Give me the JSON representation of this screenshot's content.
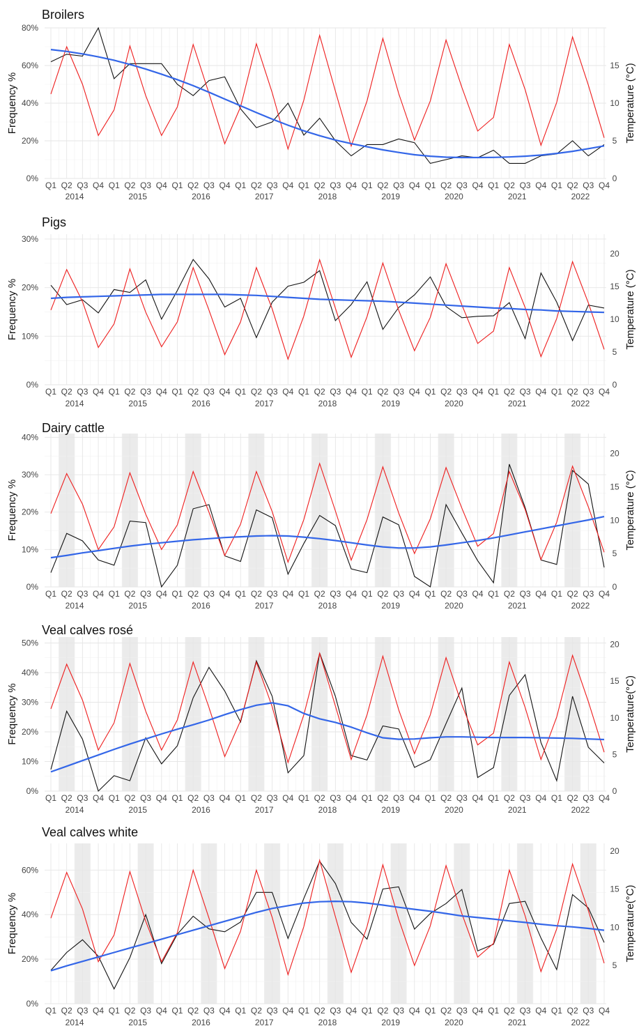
{
  "chart_data": [
    {
      "type": "line",
      "title": "Broilers",
      "ylabel": "Frequency %",
      "y2label": "Temperature (°C)",
      "ylim": [
        0,
        80
      ],
      "yticks": [
        0,
        20,
        40,
        60,
        80
      ],
      "ytick_labels": [
        "0%",
        "20%",
        "40%",
        "60%",
        "80%"
      ],
      "y2lim": [
        0,
        20
      ],
      "y2ticks": [
        0,
        5,
        10,
        15
      ],
      "shaded_quarter": null,
      "series": [
        {
          "name": "Frequency %",
          "color": "#111111",
          "values": [
            62,
            66,
            65,
            80,
            53,
            61,
            61,
            61,
            50,
            44,
            52,
            54,
            37,
            27,
            30,
            40,
            23,
            32,
            20,
            12,
            18,
            18,
            21,
            19,
            8,
            10,
            12,
            11,
            15,
            8,
            8,
            12,
            13,
            20,
            12,
            18
          ]
        },
        {
          "name": "Temperature (°C)",
          "color": "#ee1c1c",
          "values": [
            11.2,
            17.5,
            12.5,
            5.7,
            9.1,
            17.6,
            11.0,
            5.7,
            9.5,
            17.8,
            11.3,
            4.6,
            9.5,
            17.9,
            11.4,
            3.9,
            10.4,
            19.0,
            11.6,
            4.3,
            10.3,
            18.6,
            11.3,
            5.1,
            10.3,
            18.4,
            12.1,
            6.3,
            8.1,
            17.8,
            11.8,
            4.4,
            10.1,
            18.8,
            12.4,
            5.4
          ]
        },
        {
          "name": "Trend",
          "color": "#3366e8",
          "values": [
            68.5,
            67.5,
            66.2,
            64.6,
            62.8,
            60.6,
            58.1,
            55.4,
            52.5,
            49.3,
            45.8,
            42.2,
            38.6,
            35.0,
            31.5,
            28.3,
            25.3,
            22.7,
            20.4,
            18.5,
            16.8,
            15.2,
            13.8,
            12.6,
            11.8,
            11.3,
            11.1,
            11.1,
            11.2,
            11.4,
            11.8,
            12.4,
            13.3,
            14.4,
            15.8,
            17.3
          ]
        }
      ]
    },
    {
      "type": "line",
      "title": "Pigs",
      "ylabel": "Frequency %",
      "y2label": "Temperature (°C)",
      "ylim": [
        0,
        31
      ],
      "yticks": [
        0,
        10,
        20,
        30
      ],
      "ytick_labels": [
        "0%",
        "10%",
        "20%",
        "30%"
      ],
      "y2lim": [
        0,
        23
      ],
      "y2ticks": [
        0,
        5,
        10,
        15,
        20
      ],
      "shaded_quarter": null,
      "series": [
        {
          "name": "Frequency %",
          "color": "#111111",
          "values": [
            20.5,
            16.5,
            17.5,
            14.8,
            19.6,
            19.0,
            21.6,
            13.5,
            19.4,
            25.8,
            21.8,
            16.0,
            17.8,
            9.7,
            17.0,
            20.3,
            21.1,
            23.5,
            13.2,
            16.5,
            21.2,
            11.4,
            15.9,
            18.5,
            22.2,
            16.1,
            13.8,
            14.1,
            14.2,
            16.9,
            9.5,
            23.0,
            17.0,
            9.1,
            16.4,
            15.8
          ]
        },
        {
          "name": "Temperature (°C)",
          "color": "#ee1c1c",
          "values": [
            11.4,
            17.6,
            12.7,
            5.7,
            9.3,
            17.7,
            11.1,
            5.8,
            9.6,
            17.9,
            11.4,
            4.6,
            9.6,
            17.9,
            11.6,
            3.9,
            10.5,
            19.1,
            11.7,
            4.2,
            10.4,
            18.6,
            11.4,
            5.2,
            10.3,
            18.5,
            12.2,
            6.3,
            8.2,
            17.9,
            11.8,
            4.3,
            10.1,
            18.8,
            12.5,
            5.4
          ]
        },
        {
          "name": "Trend",
          "color": "#3366e8",
          "values": [
            17.8,
            18.0,
            18.1,
            18.2,
            18.3,
            18.4,
            18.5,
            18.6,
            18.6,
            18.6,
            18.6,
            18.6,
            18.5,
            18.4,
            18.2,
            18.0,
            17.8,
            17.6,
            17.5,
            17.4,
            17.3,
            17.2,
            17.0,
            16.8,
            16.6,
            16.4,
            16.2,
            16.0,
            15.8,
            15.7,
            15.5,
            15.4,
            15.2,
            15.1,
            15.0,
            14.9
          ]
        }
      ]
    },
    {
      "type": "line",
      "title": "Dairy cattle",
      "ylabel": "Frequency %",
      "y2label": "Temperature (°C)",
      "ylim": [
        0,
        41
      ],
      "yticks": [
        0,
        10,
        20,
        30,
        40
      ],
      "ytick_labels": [
        "0%",
        "10%",
        "20%",
        "30%",
        "40%"
      ],
      "y2lim": [
        0,
        23
      ],
      "y2ticks": [
        0,
        5,
        10,
        15,
        20
      ],
      "shaded_quarter": 2,
      "series": [
        {
          "name": "Frequency %",
          "color": "#111111",
          "values": [
            3.8,
            14.3,
            12.3,
            7.2,
            5.8,
            17.6,
            17.2,
            0.0,
            5.8,
            20.9,
            22.0,
            8.3,
            6.8,
            20.6,
            18.5,
            3.4,
            11.6,
            19.1,
            16.4,
            4.8,
            3.8,
            18.7,
            16.6,
            2.8,
            0.0,
            22.0,
            14.4,
            7.0,
            1.1,
            32.8,
            21.2,
            7.2,
            6.0,
            31.1,
            27.5,
            5.2
          ]
        },
        {
          "name": "Temperature (°C)",
          "color": "#ee1c1c",
          "values": [
            11.0,
            17.0,
            12.4,
            5.6,
            9.0,
            17.1,
            10.9,
            5.6,
            9.3,
            17.3,
            11.2,
            4.7,
            9.4,
            17.3,
            11.3,
            3.7,
            10.1,
            18.5,
            11.4,
            4.0,
            10.1,
            18.0,
            11.1,
            5.0,
            10.2,
            17.9,
            11.8,
            6.1,
            8.0,
            17.3,
            11.6,
            4.1,
            9.7,
            18.1,
            12.0,
            5.2
          ]
        },
        {
          "name": "Trend",
          "color": "#3366e8",
          "values": [
            7.8,
            8.4,
            9.1,
            9.7,
            10.3,
            10.9,
            11.4,
            11.8,
            12.2,
            12.6,
            12.9,
            13.2,
            13.4,
            13.6,
            13.7,
            13.6,
            13.3,
            12.9,
            12.4,
            11.8,
            11.2,
            10.7,
            10.4,
            10.4,
            10.7,
            11.2,
            11.8,
            12.4,
            13.1,
            13.9,
            14.7,
            15.5,
            16.3,
            17.1,
            17.9,
            18.8
          ]
        }
      ]
    },
    {
      "type": "line",
      "title": "Veal calves rosé",
      "ylabel": "Frequency %",
      "y2label": "Temperature(°C)",
      "ylim": [
        0,
        52
      ],
      "yticks": [
        0,
        10,
        20,
        30,
        40,
        50
      ],
      "ytick_labels": [
        "0%",
        "10%",
        "20%",
        "30%",
        "40%",
        "50%"
      ],
      "y2lim": [
        0,
        21
      ],
      "y2ticks": [
        0,
        5,
        10,
        15,
        20
      ],
      "shaded_quarter": 2,
      "series": [
        {
          "name": "Frequency %",
          "color": "#111111",
          "values": [
            7.3,
            27.0,
            17.5,
            0.0,
            5.2,
            3.5,
            18.0,
            9.2,
            15.3,
            31.5,
            41.8,
            33.8,
            23.3,
            44.0,
            32.0,
            6.2,
            12.0,
            46.6,
            32.0,
            12.0,
            10.5,
            22.0,
            21.0,
            8.0,
            10.6,
            22.8,
            34.8,
            4.6,
            7.9,
            32.3,
            39.3,
            16.4,
            3.5,
            32.0,
            14.8,
            9.5
          ]
        },
        {
          "name": "Temperature (°C)",
          "color": "#ee1c1c",
          "values": [
            11.2,
            17.3,
            12.4,
            5.6,
            9.3,
            17.4,
            10.9,
            5.6,
            9.7,
            17.6,
            11.4,
            4.7,
            9.6,
            17.6,
            11.5,
            3.9,
            10.4,
            18.8,
            11.6,
            4.3,
            10.4,
            18.4,
            11.1,
            5.1,
            10.4,
            18.2,
            11.8,
            6.3,
            7.9,
            17.6,
            11.4,
            4.3,
            10.1,
            18.5,
            12.2,
            5.3
          ]
        },
        {
          "name": "Trend",
          "color": "#3366e8",
          "values": [
            6.5,
            8.4,
            10.3,
            12.2,
            14.1,
            15.9,
            17.6,
            19.3,
            20.9,
            22.4,
            24.0,
            25.8,
            27.5,
            29.0,
            29.8,
            28.8,
            26.2,
            24.4,
            23.2,
            21.6,
            19.7,
            18.0,
            17.5,
            17.6,
            18.0,
            18.3,
            18.3,
            18.2,
            18.1,
            18.1,
            18.1,
            18.0,
            17.9,
            17.8,
            17.6,
            17.4
          ]
        }
      ]
    },
    {
      "type": "line",
      "title": "Veal calves white",
      "ylabel": "Frequency %",
      "y2label": "Temperature(°C)",
      "ylim": [
        0,
        72
      ],
      "yticks": [
        0,
        20,
        40,
        60
      ],
      "ytick_labels": [
        "0%",
        "20%",
        "40%",
        "60%"
      ],
      "y2lim": [
        0,
        21
      ],
      "y2ticks": [
        5,
        10,
        15,
        20
      ],
      "shaded_quarter": 3,
      "series": [
        {
          "name": "Frequency %",
          "color": "#111111",
          "values": [
            15.0,
            23.0,
            28.7,
            21.3,
            6.6,
            20.7,
            40.0,
            18.0,
            31.2,
            39.3,
            33.6,
            32.3,
            36.7,
            50.0,
            50.0,
            29.3,
            47.3,
            64.0,
            54.0,
            36.5,
            29.0,
            51.5,
            52.5,
            33.5,
            40.5,
            45.0,
            51.3,
            23.7,
            26.7,
            45.0,
            46.0,
            29.5,
            15.3,
            49.0,
            43.0,
            27.5
          ]
        },
        {
          "name": "Temperature (°C)",
          "color": "#ee1c1c",
          "values": [
            11.2,
            17.2,
            12.4,
            5.5,
            9.0,
            17.3,
            10.8,
            5.5,
            9.3,
            17.5,
            11.2,
            4.6,
            9.5,
            17.5,
            11.3,
            3.8,
            10.1,
            18.8,
            11.4,
            4.1,
            10.1,
            18.2,
            11.1,
            5.0,
            10.2,
            18.1,
            11.8,
            6.1,
            7.9,
            17.5,
            11.5,
            4.2,
            9.8,
            18.3,
            12.2,
            5.3
          ]
        },
        {
          "name": "Trend",
          "color": "#3366e8",
          "values": [
            14.8,
            17.0,
            19.0,
            21.0,
            23.0,
            25.0,
            27.0,
            29.0,
            31.0,
            33.0,
            35.0,
            37.0,
            39.0,
            41.0,
            42.8,
            44.0,
            45.2,
            45.8,
            46.0,
            45.8,
            45.2,
            44.3,
            43.3,
            42.4,
            41.5,
            40.5,
            39.4,
            38.7,
            38.0,
            37.2,
            36.5,
            35.7,
            35.0,
            34.5,
            33.8,
            33.0
          ]
        }
      ]
    }
  ],
  "xaxis": {
    "quarters": [
      "Q1",
      "Q2",
      "Q3",
      "Q4"
    ],
    "years": [
      "2014",
      "2015",
      "2016",
      "2017",
      "2018",
      "2019",
      "2020",
      "2021",
      "2022"
    ]
  },
  "colors": {
    "frequency": "#111111",
    "temperature": "#ee1c1c",
    "trend": "#3366e8",
    "shade": "#ebebeb"
  }
}
